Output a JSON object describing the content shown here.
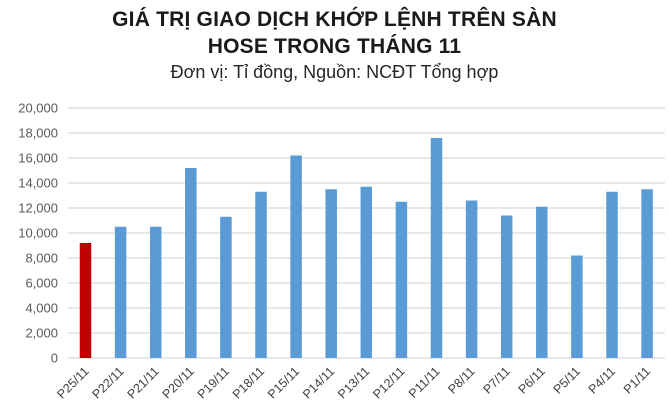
{
  "header": {
    "title_line1": "GIÁ TRỊ GIAO DỊCH KHỚP LỆNH TRÊN SÀN",
    "title_line2": "HOSE TRONG THÁNG 11",
    "subtitle": "Đơn vị: Tỉ đồng, Nguồn: NCĐT Tổng hợp"
  },
  "colors": {
    "highlight_bar": "#C00000",
    "bar": "#5B9BD5",
    "gridline": "#D9D9D9"
  },
  "chart_data": {
    "type": "bar",
    "title": "GIÁ TRỊ GIAO DỊCH KHỚP LỆNH TRÊN SÀN HOSE TRONG THÁNG 11",
    "subtitle": "Đơn vị: Tỉ đồng, Nguồn: NCĐT Tổng hợp",
    "xlabel": "",
    "ylabel": "",
    "ylim": [
      0,
      20000
    ],
    "yticks": [
      "0",
      "2,000",
      "4,000",
      "6,000",
      "8,000",
      "10,000",
      "12,000",
      "14,000",
      "16,000",
      "18,000",
      "20,000"
    ],
    "grid": true,
    "legend": "none",
    "categories": [
      "P25/11",
      "P22/11",
      "P21/11",
      "P20/11",
      "P19/11",
      "P18/11",
      "P15/11",
      "P14/11",
      "P13/11",
      "P12/11",
      "P11/11",
      "P8/11",
      "P7/11",
      "P6/11",
      "P5/11",
      "P4/11",
      "P1/11"
    ],
    "values": [
      9200,
      10500,
      10500,
      15200,
      11300,
      13300,
      16200,
      13500,
      13700,
      12500,
      17600,
      12600,
      11400,
      12100,
      8200,
      13300,
      13500
    ],
    "highlight_index": 0
  }
}
